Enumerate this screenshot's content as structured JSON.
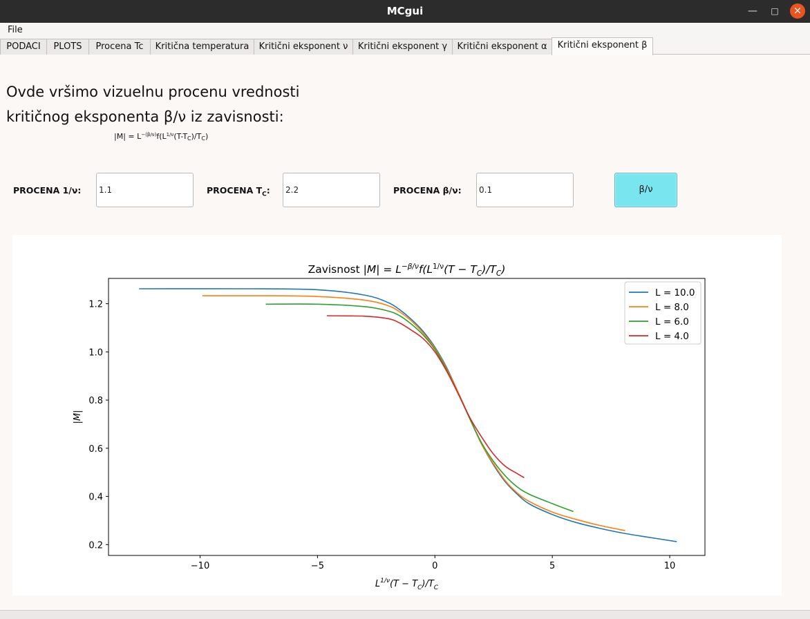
{
  "window": {
    "title": "MCgui"
  },
  "menu": {
    "file": "File"
  },
  "tabs": [
    "PODACI",
    "PLOTS",
    "Procena Tc",
    "Kritična temperatura",
    "Kritični eksponent ν",
    "Kritični eksponent γ",
    "Kritični eksponent α",
    "Kritični eksponent  β"
  ],
  "heading": {
    "line1": "Ovde vršimo vizuelnu procenu vrednosti",
    "line2": "kritičnog eksponenta β/ν iz zavisnosti:"
  },
  "formula": {
    "lhs": "|M| = L",
    "exp": "−(β/ν)",
    "mid": "f(L",
    "exp2": "1/ν",
    "mid2": "(T-T",
    "sub": "C",
    "mid3": ")/T",
    "sub2": "C",
    "end": ")"
  },
  "inputs": {
    "inv_nu": {
      "label": "PROCENA 1/ν:",
      "value": "1.1"
    },
    "tc": {
      "label": "PROCENA T",
      "label_sub": "C",
      "label_end": ":",
      "value": "2.2"
    },
    "beta_nu": {
      "label": "PROCENA β/ν:",
      "value": "0.1"
    }
  },
  "button": {
    "label": "β/ν"
  },
  "chart_data": {
    "type": "line",
    "title": "Zavisnost |M| = L^(−β/ν) f(L^(1/ν)(T − T_C)/T_C)",
    "xlabel": "L^(1/ν)(T − T_C)/T_C",
    "ylabel": "|M|",
    "xlim": [
      -13.9,
      11.5
    ],
    "ylim": [
      0.155,
      1.305
    ],
    "xticks": [
      "−10",
      "−5",
      "0",
      "5",
      "10"
    ],
    "xtick_values": [
      -10,
      -5,
      0,
      5,
      10
    ],
    "yticks": [
      "0.2",
      "0.4",
      "0.6",
      "0.8",
      "1.0",
      "1.2"
    ],
    "ytick_values": [
      0.2,
      0.4,
      0.6,
      0.8,
      1.0,
      1.2
    ],
    "legend_position": "top-right",
    "grid": false,
    "series": [
      {
        "name": "L = 10.0",
        "color": "#1f77b4",
        "x": [
          -12.6,
          -8,
          -5,
          -3,
          -2,
          -1.5,
          -1,
          -0.5,
          0,
          0.5,
          1,
          1.5,
          2,
          2.5,
          3,
          3.5,
          4,
          5,
          6,
          7,
          8,
          9,
          10.3
        ],
        "y": [
          1.262,
          1.262,
          1.258,
          1.236,
          1.205,
          1.175,
          1.135,
          1.085,
          1.02,
          0.935,
          0.83,
          0.72,
          0.615,
          0.53,
          0.46,
          0.41,
          0.37,
          0.325,
          0.292,
          0.268,
          0.248,
          0.232,
          0.212
        ]
      },
      {
        "name": "L = 8.0",
        "color": "#ff7f0e",
        "x": [
          -9.9,
          -7,
          -5,
          -3,
          -2,
          -1.5,
          -1,
          -0.5,
          0,
          0.5,
          1,
          1.5,
          2,
          2.5,
          3,
          3.5,
          4,
          5,
          6,
          7,
          8.1
        ],
        "y": [
          1.233,
          1.233,
          1.23,
          1.215,
          1.192,
          1.166,
          1.128,
          1.078,
          1.015,
          0.93,
          0.83,
          0.72,
          0.615,
          0.535,
          0.465,
          0.415,
          0.38,
          0.335,
          0.305,
          0.28,
          0.258
        ]
      },
      {
        "name": "L = 6.0",
        "color": "#2ca02c",
        "x": [
          -7.2,
          -5,
          -3,
          -2,
          -1.5,
          -1,
          -0.5,
          0,
          0.5,
          1,
          1.5,
          2,
          2.5,
          3,
          3.5,
          4,
          5,
          5.9
        ],
        "y": [
          1.198,
          1.198,
          1.188,
          1.17,
          1.15,
          1.115,
          1.07,
          1.01,
          0.925,
          0.825,
          0.72,
          0.62,
          0.545,
          0.485,
          0.44,
          0.41,
          0.37,
          0.337
        ]
      },
      {
        "name": "L = 4.0",
        "color": "#d62728",
        "x": [
          -4.6,
          -3,
          -2,
          -1.5,
          -1,
          -0.5,
          0,
          0.5,
          1,
          1.5,
          2,
          2.5,
          3,
          3.5,
          3.8
        ],
        "y": [
          1.15,
          1.148,
          1.138,
          1.12,
          1.09,
          1.055,
          1.0,
          0.92,
          0.825,
          0.725,
          0.645,
          0.575,
          0.525,
          0.495,
          0.478
        ]
      }
    ]
  }
}
